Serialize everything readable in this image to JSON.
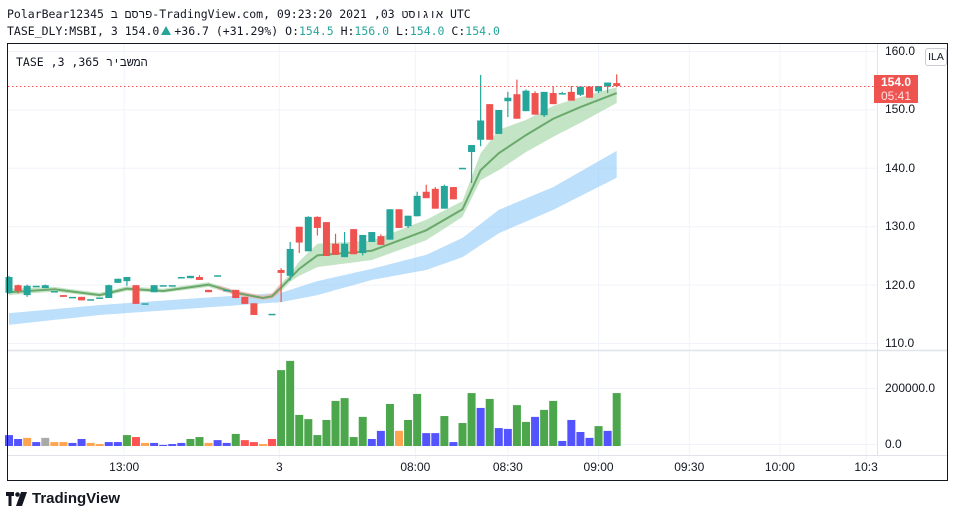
{
  "header": {
    "line1": "PolarBear12345 פרסם ב-TradingView.com,  אוגוסט 03, 2021 09:23:20 UTC",
    "symbol": "TASE_DLY:MSBI, 3",
    "last": "154.0",
    "change": "+36.7 (+31.29%)",
    "o_label": "O:",
    "o": "154.5",
    "h_label": "H:",
    "h": "156.0",
    "l_label": "L:",
    "l": "154.0",
    "c_label": "C:",
    "c": "154.0"
  },
  "watermark": "המשביר 365, 3, TASE",
  "currency_badge": "ILA",
  "price_label": {
    "price": "154.0",
    "countdown": "05:41"
  },
  "logo_text": "TradingView",
  "colors": {
    "up": "#26a69a",
    "down": "#ef5350",
    "ema_band": "#a5d6a7",
    "ema_line": "#5b9f5b",
    "slow_band": "#90caf9",
    "last_line": "#ef5350"
  },
  "chart_data": {
    "type": "candlestick",
    "price_axis": {
      "ticks": [
        "160.0",
        "150.0",
        "140.0",
        "130.0",
        "120.0",
        "110.0"
      ],
      "tick_values": [
        160,
        150,
        140,
        130,
        120,
        110
      ]
    },
    "volume_axis": {
      "ticks": [
        "200000.0",
        "0.0"
      ],
      "tick_values": [
        200000,
        0
      ]
    },
    "time_axis": {
      "labels": [
        {
          "slot": 12.7,
          "text": "13:00"
        },
        {
          "slot": 29.8,
          "text": "3"
        },
        {
          "slot": 44.8,
          "text": "08:00"
        },
        {
          "slot": 55,
          "text": "08:30"
        },
        {
          "slot": 65,
          "text": "09:00"
        },
        {
          "slot": 75,
          "text": "09:30"
        },
        {
          "slot": 85,
          "text": "10:00"
        },
        {
          "slot": 94.5,
          "text": "10:3"
        }
      ]
    },
    "last_price": 154.0,
    "candles": [
      [
        118.6,
        121.5,
        118.4,
        121.3
      ],
      [
        119.9,
        120.0,
        118.5,
        118.9
      ],
      [
        118.2,
        120.0,
        117.9,
        119.8
      ],
      [
        119.8,
        119.8,
        119.8,
        119.8
      ],
      [
        119.4,
        120.0,
        119.4,
        119.9
      ],
      [
        118.9,
        118.9,
        118.9,
        118.9
      ],
      [
        118.2,
        118.2,
        117.9,
        117.9
      ],
      [
        117.9,
        117.9,
        117.9,
        117.9
      ],
      [
        117.9,
        117.9,
        117.3,
        117.3
      ],
      [
        117.5,
        117.5,
        117.5,
        117.5
      ],
      [
        117.8,
        117.8,
        117.8,
        117.8
      ],
      [
        117.7,
        120.0,
        117.7,
        119.9
      ],
      [
        120.3,
        121.0,
        120.3,
        121.0
      ],
      [
        120.6,
        121.3,
        119.8,
        121.3
      ],
      [
        119.9,
        119.9,
        116.7,
        116.7
      ],
      [
        116.8,
        116.8,
        116.8,
        116.8
      ],
      [
        118.7,
        119.9,
        118.7,
        119.9
      ],
      [
        119.9,
        119.9,
        119.9,
        119.9
      ],
      [
        119.9,
        119.9,
        119.9,
        119.9
      ],
      [
        121.3,
        121.3,
        121.3,
        121.3
      ],
      [
        121.1,
        121.5,
        121.1,
        121.5
      ],
      [
        121.3,
        121.6,
        120.8,
        120.8
      ],
      [
        119.1,
        119.1,
        118.7,
        118.7
      ],
      [
        121.6,
        121.6,
        121.6,
        121.6
      ],
      [
        119.1,
        119.1,
        119.1,
        119.1
      ],
      [
        119.1,
        119.1,
        117.7,
        117.7
      ],
      [
        117.9,
        117.9,
        116.7,
        116.7
      ],
      [
        116.8,
        116.8,
        114.8,
        114.8
      ],
      null,
      [
        115.0,
        115.0,
        115.0,
        115.0
      ],
      [
        122.5,
        122.8,
        117.0,
        122.0
      ],
      [
        121.5,
        127.3,
        120.7,
        126.1
      ],
      [
        129.9,
        129.9,
        125.4,
        127.2
      ],
      [
        125.7,
        131.7,
        125.7,
        131.6
      ],
      [
        131.6,
        131.7,
        128.4,
        129.7
      ],
      [
        130.7,
        130.7,
        124.9,
        124.9
      ],
      [
        127.0,
        128.7,
        125.1,
        125.1
      ],
      [
        124.7,
        129.0,
        124.7,
        127.0
      ],
      [
        129.5,
        129.5,
        125.2,
        125.2
      ],
      [
        125.4,
        128.5,
        125.0,
        128.5
      ],
      [
        127.3,
        129.0,
        127.3,
        129.0
      ],
      [
        128.3,
        128.6,
        126.8,
        126.8
      ],
      [
        127.7,
        132.9,
        127.7,
        132.9
      ],
      [
        132.9,
        132.9,
        129.7,
        129.7
      ],
      [
        130.0,
        131.8,
        129.7,
        131.8
      ],
      [
        131.7,
        135.9,
        131.7,
        135.2
      ],
      [
        135.9,
        137.1,
        134.8,
        134.8
      ],
      [
        136.4,
        136.7,
        133.0,
        133.0
      ],
      [
        133.0,
        137.1,
        133.0,
        136.9
      ],
      [
        136.7,
        136.7,
        134.6,
        134.6
      ],
      [
        140.0,
        140.0,
        140.0,
        140.0
      ],
      [
        142.7,
        143.9,
        137.4,
        143.9
      ],
      [
        144.8,
        155.9,
        143.7,
        148.1
      ],
      [
        150.9,
        150.9,
        144.8,
        144.8
      ],
      [
        145.8,
        149.9,
        145.8,
        149.9
      ],
      [
        151.4,
        153.0,
        148.7,
        152.0
      ],
      [
        152.6,
        155.1,
        148.4,
        148.4
      ],
      [
        149.7,
        153.4,
        149.7,
        153.2
      ],
      [
        152.8,
        153.1,
        149.1,
        149.1
      ],
      [
        149.0,
        153.0,
        148.7,
        153.0
      ],
      [
        152.8,
        154.0,
        150.9,
        150.9
      ],
      [
        152.8,
        153.0,
        152.8,
        152.8
      ],
      [
        153.0,
        154.0,
        151.5,
        151.5
      ],
      [
        152.5,
        154.0,
        152.3,
        153.9
      ],
      [
        153.9,
        154.0,
        152.0,
        152.0
      ],
      [
        153.1,
        154.0,
        152.8,
        154.0
      ],
      [
        153.9,
        154.6,
        152.8,
        154.6
      ],
      [
        154.5,
        156.0,
        154.0,
        154.0
      ]
    ],
    "volume": [
      [
        39000,
        "blue"
      ],
      [
        25000,
        "blue"
      ],
      [
        29000,
        "orange"
      ],
      [
        14000,
        "blue"
      ],
      [
        29000,
        "gray"
      ],
      [
        14000,
        "orange"
      ],
      [
        14000,
        "orange"
      ],
      [
        11000,
        "blue"
      ],
      [
        25000,
        "blue"
      ],
      [
        11000,
        "orange"
      ],
      [
        7000,
        "orange"
      ],
      [
        14000,
        "blue"
      ],
      [
        14000,
        "blue"
      ],
      [
        39000,
        "green"
      ],
      [
        32000,
        "red"
      ],
      [
        11000,
        "orange"
      ],
      [
        11000,
        "blue"
      ],
      [
        4000,
        "blue"
      ],
      [
        7000,
        "blue"
      ],
      [
        11000,
        "blue"
      ],
      [
        25000,
        "green"
      ],
      [
        32000,
        "green"
      ],
      [
        11000,
        "orange"
      ],
      [
        21000,
        "blue"
      ],
      [
        11000,
        "blue"
      ],
      [
        43000,
        "green"
      ],
      [
        21000,
        "red"
      ],
      [
        14000,
        "red"
      ],
      [
        7000,
        "orange"
      ],
      [
        25000,
        "red"
      ],
      [
        271000,
        "green"
      ],
      [
        304000,
        "green"
      ],
      [
        111000,
        "green"
      ],
      [
        96000,
        "green"
      ],
      [
        39000,
        "green"
      ],
      [
        93000,
        "green"
      ],
      [
        161000,
        "green"
      ],
      [
        171000,
        "green"
      ],
      [
        32000,
        "green"
      ],
      [
        104000,
        "green"
      ],
      [
        25000,
        "blue"
      ],
      [
        54000,
        "blue"
      ],
      [
        150000,
        "green"
      ],
      [
        54000,
        "orange"
      ],
      [
        93000,
        "green"
      ],
      [
        186000,
        "green"
      ],
      [
        46000,
        "blue"
      ],
      [
        46000,
        "blue"
      ],
      [
        107000,
        "green"
      ],
      [
        14000,
        "blue"
      ],
      [
        82000,
        "green"
      ],
      [
        189000,
        "green"
      ],
      [
        136000,
        "blue"
      ],
      [
        168000,
        "green"
      ],
      [
        64000,
        "blue"
      ],
      [
        61000,
        "blue"
      ],
      [
        146000,
        "green"
      ],
      [
        86000,
        "green"
      ],
      [
        104000,
        "blue"
      ],
      [
        129000,
        "green"
      ],
      [
        161000,
        "green"
      ],
      [
        18000,
        "blue"
      ],
      [
        93000,
        "blue"
      ],
      [
        50000,
        "blue"
      ],
      [
        29000,
        "blue"
      ],
      [
        71000,
        "green"
      ],
      [
        54000,
        "blue"
      ],
      [
        189000,
        "green"
      ]
    ],
    "volume_colors": {
      "green": "#4ca64c",
      "blue": "#5454ff",
      "orange": "#ffa54f",
      "red": "#ff5252",
      "gray": "#a9a9a9"
    },
    "ema_band": [
      [
        0,
        118.2,
        119.3
      ],
      [
        5,
        118.8,
        119.6
      ],
      [
        10,
        117.9,
        118.6
      ],
      [
        13,
        118.9,
        119.7
      ],
      [
        17,
        118.6,
        119.3
      ],
      [
        22,
        119.6,
        120.4
      ],
      [
        25,
        118.2,
        119.0
      ],
      [
        28,
        117.4,
        118.1
      ],
      [
        29,
        117.6,
        118.5
      ],
      [
        30,
        118.8,
        120.2
      ],
      [
        31,
        120.5,
        121.8
      ],
      [
        32,
        121.5,
        124.0
      ],
      [
        34,
        123.0,
        127.0
      ],
      [
        40,
        124.2,
        127.5
      ],
      [
        46,
        127.6,
        131.1
      ],
      [
        50,
        131.6,
        134.3
      ],
      [
        52,
        137.9,
        142.5
      ],
      [
        54,
        139.6,
        146.5
      ],
      [
        57,
        142.7,
        148.2
      ],
      [
        60,
        145.3,
        150.6
      ],
      [
        63,
        147.7,
        152.1
      ],
      [
        67,
        151.1,
        153.8
      ]
    ],
    "ema_line": [
      [
        0,
        118.7
      ],
      [
        5,
        119.2
      ],
      [
        10,
        118.2
      ],
      [
        13,
        119.3
      ],
      [
        17,
        118.9
      ],
      [
        22,
        120.0
      ],
      [
        25,
        118.6
      ],
      [
        28,
        117.7
      ],
      [
        29,
        118.0
      ],
      [
        30,
        119.5
      ],
      [
        31,
        121.1
      ],
      [
        32,
        122.7
      ],
      [
        34,
        125.0
      ],
      [
        40,
        125.8
      ],
      [
        46,
        129.3
      ],
      [
        50,
        132.9
      ],
      [
        52,
        139.6
      ],
      [
        54,
        142.5
      ],
      [
        57,
        145.6
      ],
      [
        60,
        148.4
      ],
      [
        63,
        150.4
      ],
      [
        67,
        152.8
      ]
    ],
    "slow_band": [
      [
        0,
        113.1,
        115.1
      ],
      [
        10,
        114.8,
        116.5
      ],
      [
        21,
        116.0,
        117.7
      ],
      [
        30,
        117.0,
        118.6
      ],
      [
        34,
        118.2,
        120.6
      ],
      [
        40,
        120.8,
        122.7
      ],
      [
        46,
        122.5,
        125.1
      ],
      [
        50,
        124.7,
        128.0
      ],
      [
        54,
        128.8,
        132.8
      ],
      [
        60,
        132.8,
        136.7
      ],
      [
        67,
        138.3,
        142.9
      ]
    ],
    "ema_band_red_segment": [
      23,
      30
    ]
  }
}
